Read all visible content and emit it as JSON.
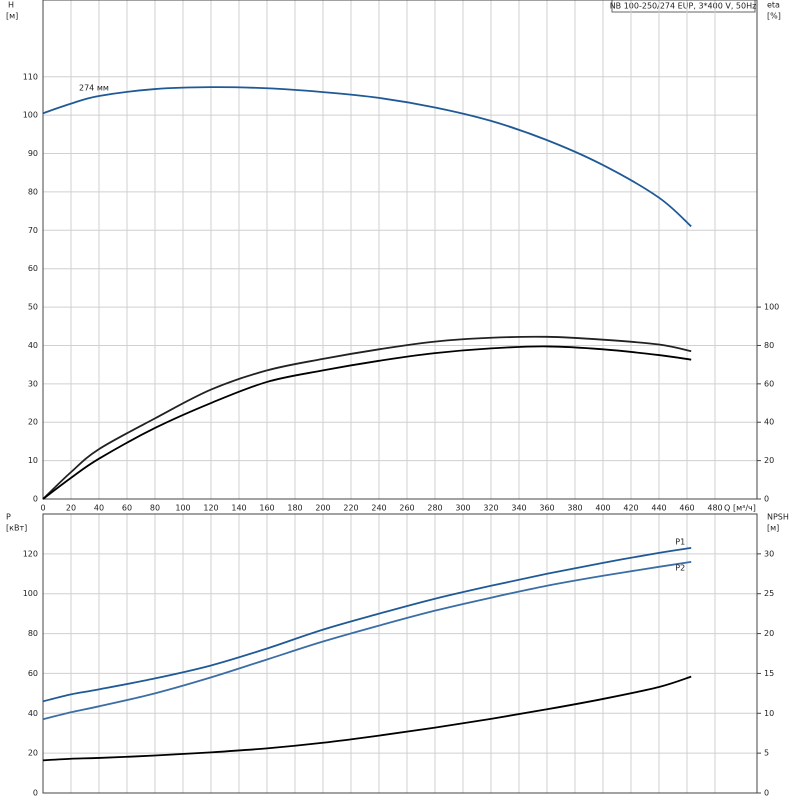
{
  "chart_data": [
    {
      "type": "line",
      "title": "NB 100-250/274 EUP, 3*400 V, 50Hz",
      "y_label": "H",
      "y_unit": "[м]",
      "y2_label": "eta",
      "y2_unit": "[%]",
      "x_label": "Q",
      "x_unit": "[м³/ч]",
      "curve_label": "274 мм",
      "x": [
        0,
        20,
        40,
        80,
        120,
        160,
        200,
        240,
        280,
        320,
        360,
        400,
        440,
        463
      ],
      "xlim": [
        0,
        510
      ],
      "xticks": [
        0,
        20,
        40,
        60,
        80,
        100,
        120,
        140,
        160,
        180,
        200,
        220,
        240,
        260,
        280,
        300,
        320,
        340,
        360,
        380,
        400,
        420,
        440,
        460,
        480
      ],
      "ylim": [
        0,
        130
      ],
      "yticks": [
        0,
        10,
        20,
        30,
        40,
        50,
        60,
        70,
        80,
        90,
        100,
        110
      ],
      "y2lim": [
        0,
        260
      ],
      "y2ticks": [
        0,
        20,
        40,
        60,
        80,
        100
      ],
      "grid": true,
      "series": [
        {
          "color": "#1f5a96",
          "values": [
            100.5,
            103,
            105,
            106.8,
            107.3,
            107,
            106,
            104.5,
            102,
            98.5,
            93.5,
            87,
            78.5,
            71
          ]
        },
        {
          "color": "#222222",
          "axis": "y2",
          "values": [
            0,
            14,
            26,
            42,
            57,
            67,
            73,
            78,
            82,
            84,
            84.5,
            83,
            80.5,
            77
          ]
        },
        {
          "color": "#000000",
          "axis": "y2",
          "values": [
            0,
            11,
            21,
            37,
            50,
            61,
            67,
            72,
            76,
            78.5,
            79.5,
            78,
            75,
            72.6
          ]
        }
      ]
    },
    {
      "type": "line",
      "y_label": "P",
      "y_unit": "[кВт]",
      "y2_label": "NPSH",
      "y2_unit": "[м]",
      "x": [
        0,
        20,
        40,
        80,
        120,
        160,
        200,
        240,
        280,
        320,
        360,
        400,
        440,
        463
      ],
      "xlim": [
        0,
        510
      ],
      "ylim": [
        0,
        140
      ],
      "yticks": [
        0,
        20,
        40,
        60,
        80,
        100,
        120
      ],
      "y2lim": [
        0,
        35
      ],
      "y2ticks": [
        0,
        5,
        10,
        15,
        20,
        25,
        30
      ],
      "grid": true,
      "series": [
        {
          "name": "P1",
          "color": "#1f5a96",
          "values": [
            46,
            49.5,
            52,
            57.5,
            64,
            72.5,
            82,
            90,
            97.5,
            104,
            110,
            115.5,
            120.5,
            123
          ]
        },
        {
          "name": "P2",
          "color": "#3a6ea5",
          "values": [
            37,
            40.5,
            43.5,
            50,
            58,
            67,
            76,
            84,
            91.5,
            98,
            104,
            109,
            113.5,
            116
          ]
        },
        {
          "color": "#000000",
          "axis": "y2",
          "values": [
            4.1,
            4.3,
            4.4,
            4.7,
            5.1,
            5.6,
            6.3,
            7.2,
            8.2,
            9.3,
            10.5,
            11.8,
            13.3,
            14.6
          ]
        }
      ]
    }
  ]
}
